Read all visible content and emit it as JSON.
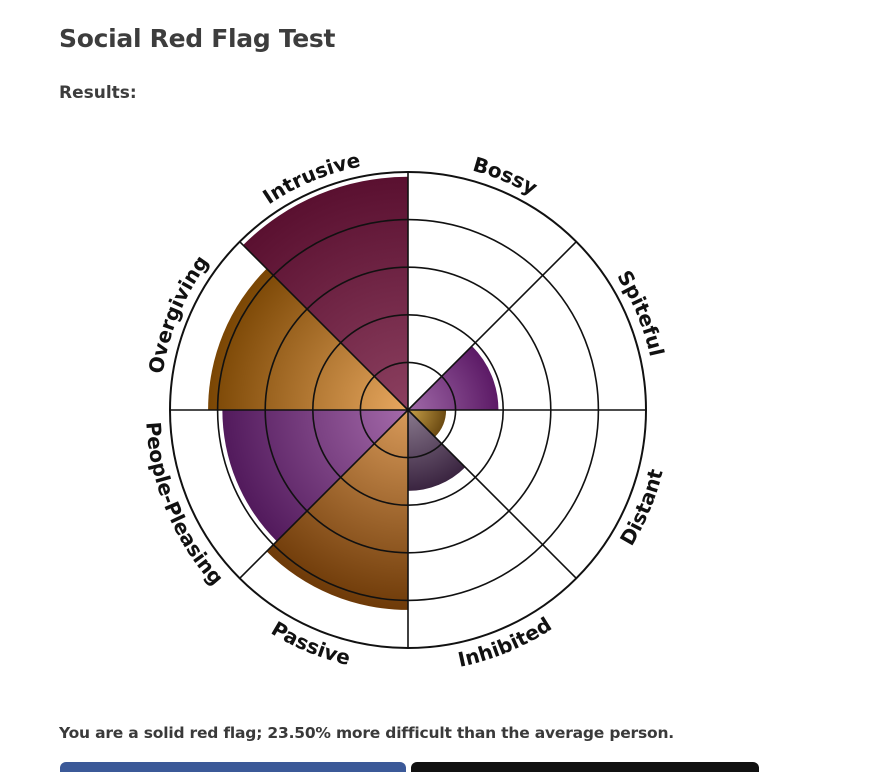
{
  "page": {
    "title": "Social Red Flag Test",
    "results_label": "Results:",
    "summary": "You are a solid red flag; 23.50% more difficult than the average person."
  },
  "chart_data": {
    "type": "polar-area",
    "title": "",
    "rings": 5,
    "max": 5,
    "categories": [
      "Bossy",
      "Spiteful",
      "Distant",
      "Inhibited",
      "Passive",
      "People-Pleasing",
      "Overgiving",
      "Intrusive"
    ],
    "values": [
      0,
      1.9,
      0.8,
      1.7,
      4.2,
      3.9,
      4.2,
      4.9
    ],
    "colors": {
      "Bossy": "#ffffff",
      "Spiteful": "#5c1a66",
      "Distant": "#6b4a12",
      "Inhibited": "#3a2440",
      "Passive": "#6e3a08",
      "People-Pleasing": "#521a5c",
      "Overgiving": "#7a4604",
      "Intrusive": "#5a1030"
    },
    "center_colors": {
      "Bossy": "#ffffff",
      "Spiteful": "#a06aa8",
      "Distant": "#c9a24a",
      "Inhibited": "#8a7a8e",
      "Passive": "#d89a5a",
      "People-Pleasing": "#a46aaa",
      "Overgiving": "#e8a860",
      "Intrusive": "#8c4060"
    }
  },
  "buttons": {
    "share": "",
    "retake": ""
  }
}
